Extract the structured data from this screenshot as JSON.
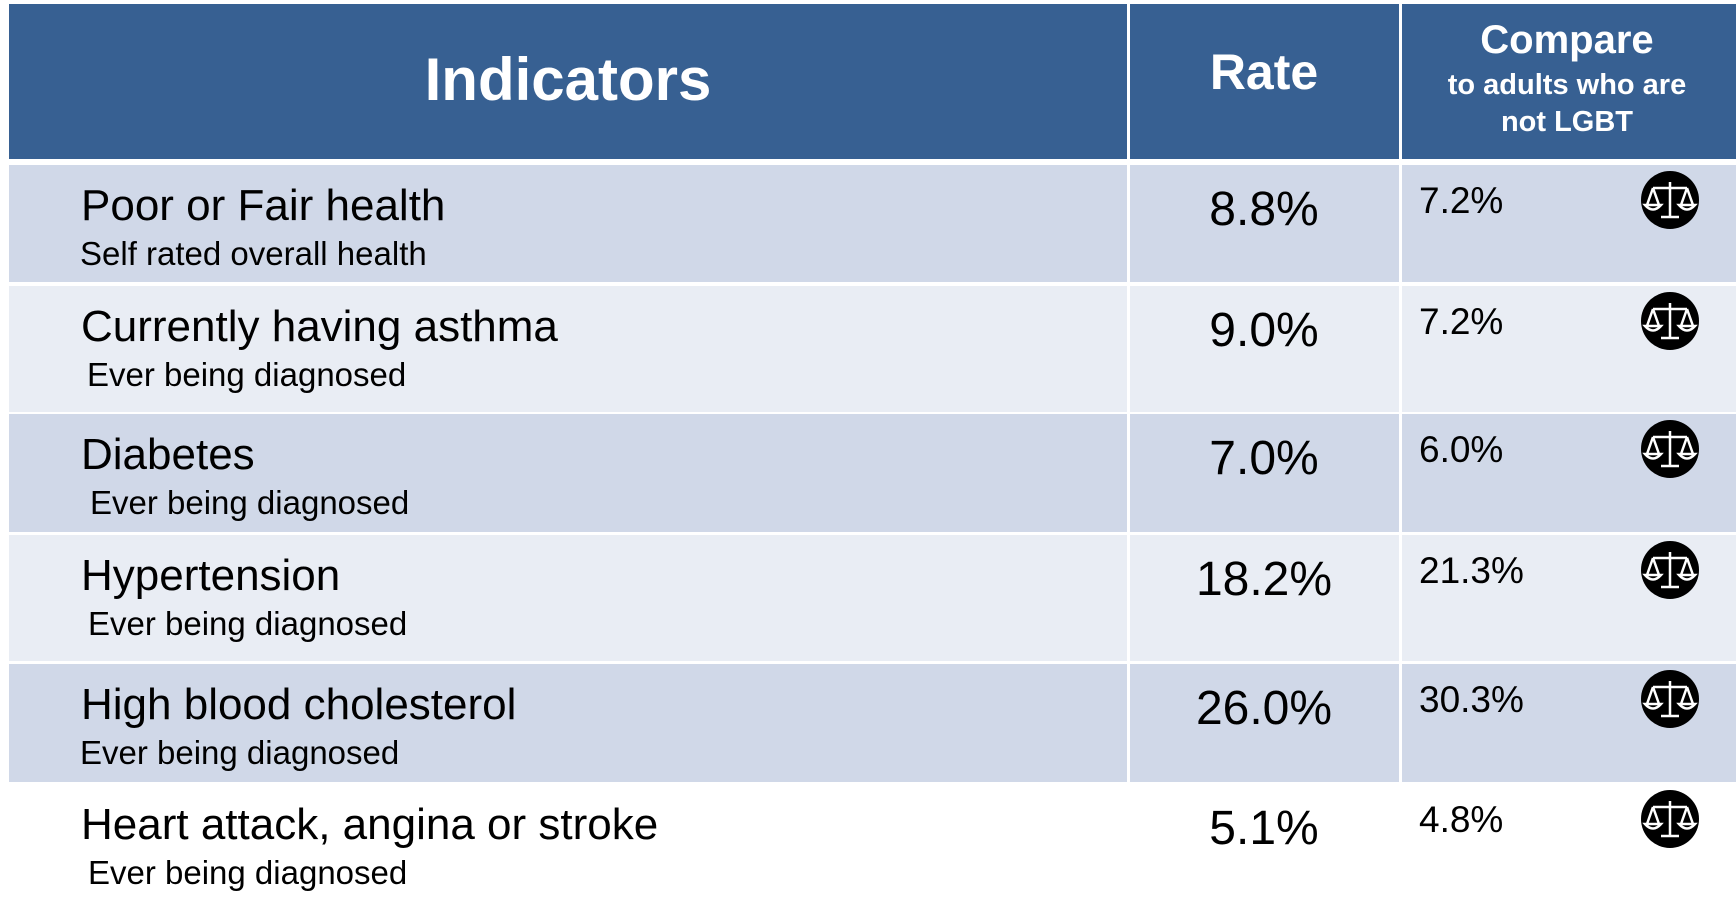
{
  "header": {
    "indicators": "Indicators",
    "rate": "Rate",
    "compare": "Compare",
    "compare_sub": [
      "to adults who are",
      "not LGBT"
    ]
  },
  "rows": [
    {
      "name": "Poor or Fair health",
      "description": "Self rated overall health",
      "rate": "8.8%",
      "compare": "7.2%"
    },
    {
      "name": "Currently having asthma",
      "description": "Ever being diagnosed",
      "rate": "9.0%",
      "compare": "7.2%"
    },
    {
      "name": "Diabetes",
      "description": "Ever being diagnosed",
      "rate": "7.0%",
      "compare": "6.0%"
    },
    {
      "name": "Hypertension",
      "description": "Ever being diagnosed",
      "rate": "18.2%",
      "compare": "21.3%"
    },
    {
      "name": "High blood cholesterol",
      "description": "Ever being diagnosed",
      "rate": "26.0%",
      "compare": "30.3%"
    },
    {
      "name": "Heart attack, angina or stroke",
      "description": "Ever being diagnosed",
      "rate": "5.1%",
      "compare": "4.8%"
    }
  ]
}
